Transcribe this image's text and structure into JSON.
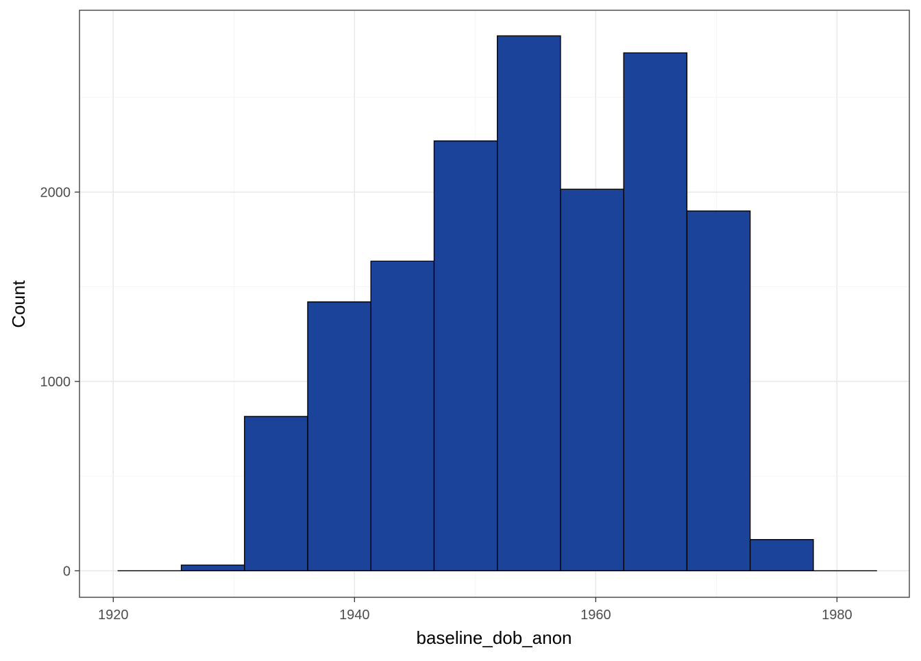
{
  "chart_data": {
    "type": "bar",
    "subtype": "histogram",
    "xlabel": "baseline_dob_anon",
    "ylabel": "Count",
    "x_ticks": [
      1920,
      1940,
      1960,
      1980
    ],
    "y_ticks": [
      0,
      1000,
      2000
    ],
    "xlim": [
      1917.2,
      1986.0
    ],
    "ylim": [
      -140,
      2960
    ],
    "grid": true,
    "bin_edges": [
      1920.4,
      1925.64,
      1930.88,
      1936.12,
      1941.36,
      1946.6,
      1951.84,
      1957.08,
      1962.32,
      1967.56,
      1972.8,
      1978.04,
      1983.28
    ],
    "values": [
      0,
      30,
      815,
      1420,
      1635,
      2270,
      2825,
      2015,
      2735,
      1900,
      165,
      0
    ],
    "fill_color": "#1a4399",
    "outline_color": "#000000"
  }
}
